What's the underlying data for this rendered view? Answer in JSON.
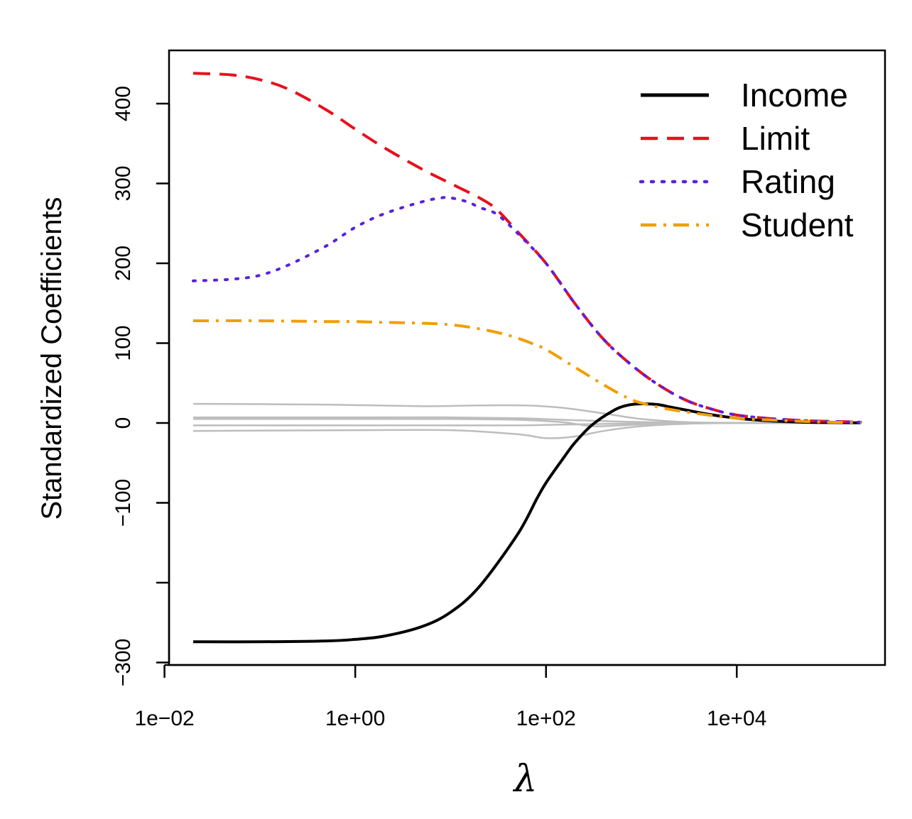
{
  "chart_data": {
    "type": "line",
    "xlabel": "λ",
    "ylabel": "Standardized Coefficients",
    "x_scale": "log",
    "xlim": [
      0.02,
      200000
    ],
    "ylim": [
      -300,
      440
    ],
    "x_ticks": [
      {
        "value": 0.01,
        "label": "1e−02"
      },
      {
        "value": 1,
        "label": "1e+00"
      },
      {
        "value": 100,
        "label": "1e+02"
      },
      {
        "value": 10000,
        "label": "1e+04"
      }
    ],
    "y_ticks": [
      {
        "value": -300,
        "label": "−300"
      },
      {
        "value": -200,
        "label": ""
      },
      {
        "value": -100,
        "label": "−100"
      },
      {
        "value": 0,
        "label": "0"
      },
      {
        "value": 100,
        "label": "100"
      },
      {
        "value": 200,
        "label": "200"
      },
      {
        "value": 300,
        "label": "300"
      },
      {
        "value": 400,
        "label": "400"
      }
    ],
    "legend_position": "top-right",
    "series": [
      {
        "name": "Income",
        "color": "#000000",
        "dash": "solid",
        "width": 4,
        "points": [
          [
            0.02,
            -274
          ],
          [
            0.1,
            -274
          ],
          [
            0.5,
            -273
          ],
          [
            1,
            -271
          ],
          [
            2,
            -267
          ],
          [
            5,
            -255
          ],
          [
            10,
            -237
          ],
          [
            20,
            -205
          ],
          [
            50,
            -140
          ],
          [
            80,
            -95
          ],
          [
            100,
            -75
          ],
          [
            150,
            -45
          ],
          [
            200,
            -25
          ],
          [
            300,
            -3
          ],
          [
            500,
            15
          ],
          [
            700,
            22
          ],
          [
            1000,
            24
          ],
          [
            1500,
            23
          ],
          [
            2000,
            20
          ],
          [
            3000,
            16
          ],
          [
            5000,
            11
          ],
          [
            10000,
            6
          ],
          [
            20000,
            3
          ],
          [
            50000,
            1
          ],
          [
            100000,
            0.5
          ],
          [
            200000,
            0.2
          ]
        ]
      },
      {
        "name": "Limit",
        "color": "#e8101c",
        "dash": "dashed",
        "width": 4,
        "points": [
          [
            0.02,
            438
          ],
          [
            0.05,
            436
          ],
          [
            0.1,
            430
          ],
          [
            0.2,
            418
          ],
          [
            0.5,
            392
          ],
          [
            1,
            368
          ],
          [
            2,
            345
          ],
          [
            5,
            318
          ],
          [
            10,
            300
          ],
          [
            20,
            282
          ],
          [
            30,
            268
          ],
          [
            50,
            240
          ],
          [
            100,
            200
          ],
          [
            200,
            150
          ],
          [
            400,
            105
          ],
          [
            800,
            72
          ],
          [
            1500,
            48
          ],
          [
            3000,
            28
          ],
          [
            6000,
            16
          ],
          [
            10000,
            10
          ],
          [
            20000,
            6
          ],
          [
            50000,
            3
          ],
          [
            100000,
            2
          ],
          [
            200000,
            1
          ]
        ]
      },
      {
        "name": "Rating",
        "color": "#5b1fe0",
        "dash": "dotted",
        "width": 4,
        "points": [
          [
            0.02,
            178
          ],
          [
            0.05,
            180
          ],
          [
            0.1,
            185
          ],
          [
            0.2,
            198
          ],
          [
            0.5,
            222
          ],
          [
            1,
            245
          ],
          [
            2,
            262
          ],
          [
            5,
            277
          ],
          [
            8,
            282
          ],
          [
            10,
            282
          ],
          [
            15,
            277
          ],
          [
            20,
            270
          ],
          [
            30,
            262
          ],
          [
            50,
            238
          ],
          [
            100,
            200
          ],
          [
            200,
            150
          ],
          [
            400,
            105
          ],
          [
            800,
            72
          ],
          [
            1500,
            48
          ],
          [
            3000,
            28
          ],
          [
            6000,
            16
          ],
          [
            10000,
            10
          ],
          [
            20000,
            6
          ],
          [
            50000,
            3
          ],
          [
            100000,
            2
          ],
          [
            200000,
            1
          ]
        ]
      },
      {
        "name": "Student",
        "color": "#f29e00",
        "dash": "dashdot",
        "width": 4,
        "points": [
          [
            0.02,
            128
          ],
          [
            0.1,
            128
          ],
          [
            0.5,
            127
          ],
          [
            1,
            127
          ],
          [
            2,
            126
          ],
          [
            5,
            125
          ],
          [
            10,
            123
          ],
          [
            20,
            118
          ],
          [
            40,
            110
          ],
          [
            70,
            100
          ],
          [
            100,
            92
          ],
          [
            200,
            70
          ],
          [
            400,
            48
          ],
          [
            700,
            32
          ],
          [
            1000,
            25
          ],
          [
            2000,
            17
          ],
          [
            5000,
            10
          ],
          [
            10000,
            6
          ],
          [
            20000,
            4
          ],
          [
            50000,
            2
          ],
          [
            100000,
            1
          ],
          [
            200000,
            0.5
          ]
        ]
      },
      {
        "name": "",
        "color": "#bdbdbd",
        "dash": "solid",
        "width": 2.5,
        "points": [
          [
            0.02,
            24
          ],
          [
            0.5,
            23
          ],
          [
            5,
            21
          ],
          [
            20,
            22
          ],
          [
            60,
            22
          ],
          [
            150,
            19
          ],
          [
            400,
            12
          ],
          [
            1000,
            5
          ],
          [
            3000,
            1
          ],
          [
            10000,
            0.3
          ],
          [
            200000,
            0
          ]
        ]
      },
      {
        "name": "",
        "color": "#bdbdbd",
        "dash": "solid",
        "width": 2.5,
        "points": [
          [
            0.02,
            7
          ],
          [
            1,
            7
          ],
          [
            10,
            7
          ],
          [
            50,
            6
          ],
          [
            150,
            4
          ],
          [
            500,
            2
          ],
          [
            2000,
            0.5
          ],
          [
            10000,
            0.1
          ],
          [
            200000,
            0
          ]
        ]
      },
      {
        "name": "",
        "color": "#bdbdbd",
        "dash": "solid",
        "width": 2.5,
        "points": [
          [
            0.02,
            5
          ],
          [
            1,
            5
          ],
          [
            10,
            5
          ],
          [
            50,
            4
          ],
          [
            150,
            1
          ],
          [
            300,
            -4
          ],
          [
            600,
            -3
          ],
          [
            1500,
            -1
          ],
          [
            10000,
            0
          ],
          [
            200000,
            0
          ]
        ]
      },
      {
        "name": "",
        "color": "#bdbdbd",
        "dash": "solid",
        "width": 2.5,
        "points": [
          [
            0.02,
            -3
          ],
          [
            1,
            -3
          ],
          [
            10,
            -3
          ],
          [
            50,
            -3
          ],
          [
            150,
            -2
          ],
          [
            500,
            -1
          ],
          [
            2000,
            -0.3
          ],
          [
            10000,
            0
          ],
          [
            200000,
            0
          ]
        ]
      },
      {
        "name": "",
        "color": "#bdbdbd",
        "dash": "solid",
        "width": 2.5,
        "points": [
          [
            0.02,
            -10
          ],
          [
            1,
            -9
          ],
          [
            10,
            -9
          ],
          [
            50,
            -14
          ],
          [
            100,
            -19
          ],
          [
            200,
            -17
          ],
          [
            400,
            -10
          ],
          [
            1000,
            -4
          ],
          [
            3000,
            -1
          ],
          [
            10000,
            0
          ],
          [
            200000,
            0
          ]
        ]
      }
    ]
  }
}
